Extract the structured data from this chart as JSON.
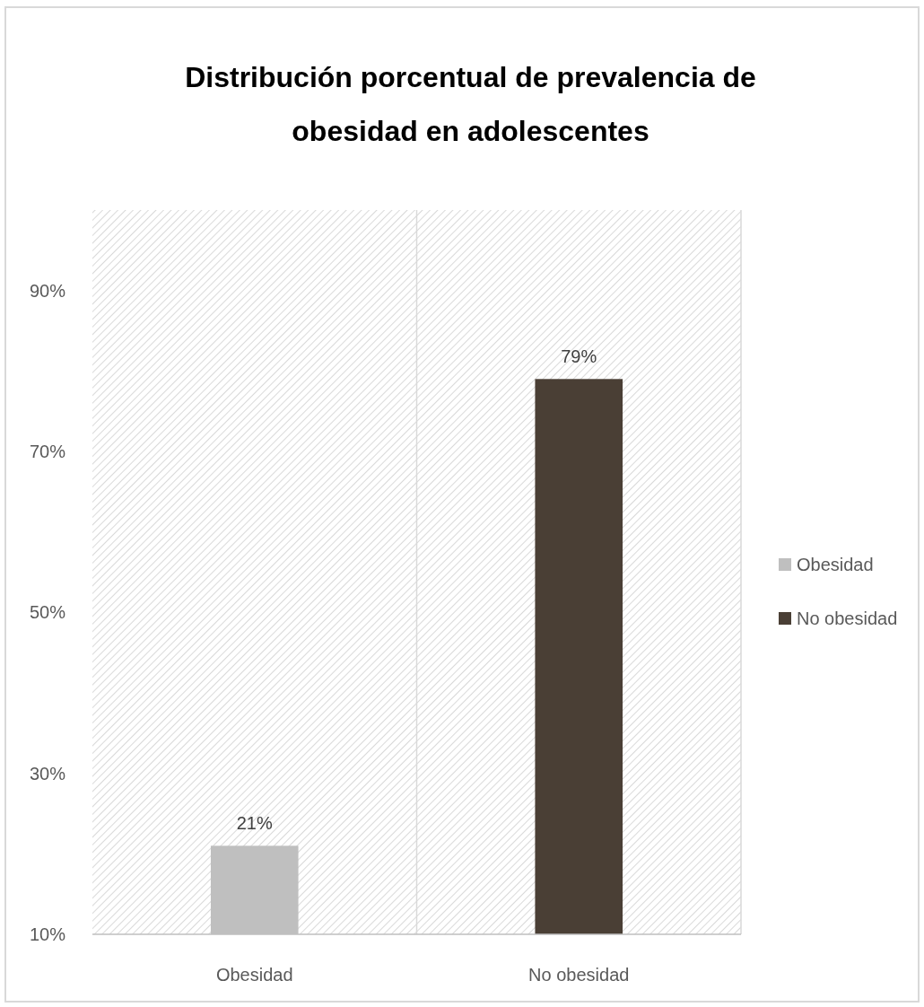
{
  "chart_data": {
    "type": "bar",
    "title": "Distribución porcentual de prevalencia de\nobesidad en adolescentes",
    "categories": [
      "Obesidad",
      "No obesidad"
    ],
    "series": [
      {
        "name": "Obesidad",
        "color": "#bfbfbf",
        "values": [
          21,
          null
        ],
        "value_labels": [
          "21%",
          null
        ]
      },
      {
        "name": "No obesidad",
        "color": "#4a3f35",
        "values": [
          null,
          79
        ],
        "value_labels": [
          null,
          "79%"
        ]
      }
    ],
    "ylim": [
      10,
      100
    ],
    "yticks": [
      {
        "value": 10,
        "label": "10%"
      },
      {
        "value": 30,
        "label": "30%"
      },
      {
        "value": 50,
        "label": "50%"
      },
      {
        "value": 70,
        "label": "70%"
      },
      {
        "value": 90,
        "label": "90%"
      }
    ],
    "legend": "right"
  }
}
